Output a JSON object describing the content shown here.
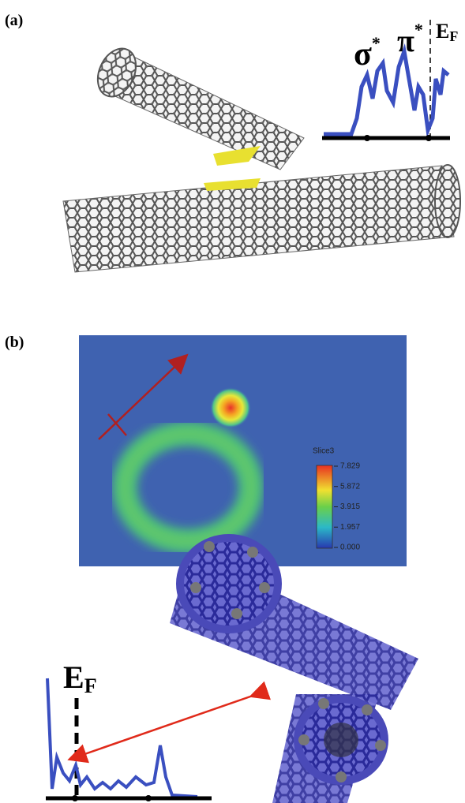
{
  "panel_a": {
    "label": "(a)",
    "sigma": {
      "symbol": "σ",
      "sup": "*"
    },
    "pi": {
      "symbol": "π",
      "sup": "*"
    },
    "fermi": {
      "symbol": "E",
      "sub": "F"
    }
  },
  "panel_b": {
    "label": "(b)",
    "colorbar": {
      "title": "Slice3",
      "ticks": [
        "7.829",
        "5.872",
        "3.915",
        "1.957",
        "0.000"
      ]
    },
    "fermi": {
      "symbol": "E",
      "sub": "F"
    }
  }
}
